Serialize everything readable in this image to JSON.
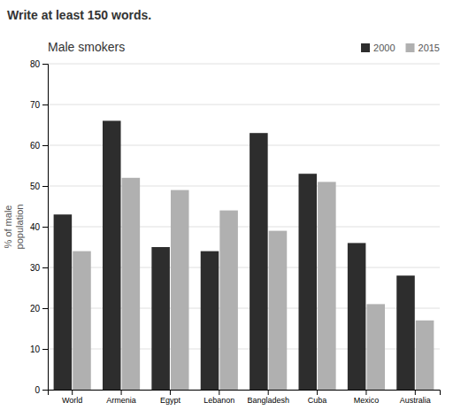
{
  "chart_data": {
    "type": "bar",
    "title": "Male smokers",
    "annotations": [
      "Write at least 150 words."
    ],
    "ylabel": [
      "% of male",
      "population"
    ],
    "categories": [
      "World",
      "Armenia",
      "Egypt",
      "Lebanon",
      "Bangladesh",
      "Cuba",
      "Mexico",
      "Australia"
    ],
    "series": [
      {
        "name": "2000",
        "color": "#2d2d2d",
        "values": [
          43,
          66,
          35,
          34,
          63,
          53,
          36,
          28
        ]
      },
      {
        "name": "2015",
        "color": "#b0b0b0",
        "values": [
          34,
          52,
          49,
          44,
          39,
          51,
          21,
          17
        ]
      }
    ],
    "ylim": [
      0,
      80
    ],
    "yticks": [
      0,
      10,
      20,
      30,
      40,
      50,
      60,
      70,
      80
    ],
    "grid": true,
    "legend": "upper right"
  }
}
